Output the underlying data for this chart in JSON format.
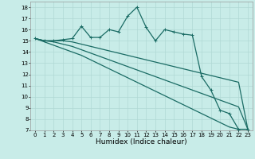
{
  "xlabel": "Humidex (Indice chaleur)",
  "background_color": "#c8ece8",
  "grid_color": "#b0d8d4",
  "line_color": "#1a6b64",
  "x_values": [
    0,
    1,
    2,
    3,
    4,
    5,
    6,
    7,
    8,
    9,
    10,
    11,
    12,
    13,
    14,
    15,
    16,
    17,
    18,
    19,
    20,
    21,
    22,
    23
  ],
  "line1": [
    15.2,
    15.0,
    15.0,
    15.1,
    15.2,
    16.3,
    15.3,
    15.3,
    16.0,
    15.8,
    17.2,
    18.0,
    16.2,
    15.0,
    16.0,
    15.8,
    15.6,
    15.5,
    11.8,
    10.6,
    8.8,
    8.5,
    7.1,
    7.1
  ],
  "line2": [
    15.2,
    15.0,
    15.0,
    15.0,
    14.9,
    14.7,
    14.5,
    14.3,
    14.1,
    13.9,
    13.7,
    13.5,
    13.3,
    13.1,
    12.9,
    12.7,
    12.5,
    12.3,
    12.1,
    11.9,
    11.7,
    11.5,
    11.3,
    7.1
  ],
  "line3": [
    15.2,
    15.0,
    14.9,
    14.7,
    14.5,
    14.2,
    13.9,
    13.6,
    13.3,
    13.0,
    12.7,
    12.4,
    12.1,
    11.8,
    11.5,
    11.2,
    10.9,
    10.6,
    10.3,
    10.0,
    9.7,
    9.4,
    9.1,
    7.1
  ],
  "line4": [
    15.2,
    14.9,
    14.6,
    14.3,
    14.0,
    13.7,
    13.3,
    12.9,
    12.5,
    12.1,
    11.7,
    11.3,
    10.9,
    10.5,
    10.1,
    9.7,
    9.3,
    8.9,
    8.5,
    8.1,
    7.7,
    7.3,
    7.1,
    7.1
  ],
  "ylim": [
    7,
    18.5
  ],
  "xlim": [
    -0.5,
    23.5
  ],
  "yticks": [
    7,
    8,
    9,
    10,
    11,
    12,
    13,
    14,
    15,
    16,
    17,
    18
  ],
  "xticks": [
    0,
    1,
    2,
    3,
    4,
    5,
    6,
    7,
    8,
    9,
    10,
    11,
    12,
    13,
    14,
    15,
    16,
    17,
    18,
    19,
    20,
    21,
    22,
    23
  ],
  "marker_size": 3,
  "line_width": 0.9,
  "label_fontsize": 6.5,
  "tick_fontsize": 5.0
}
